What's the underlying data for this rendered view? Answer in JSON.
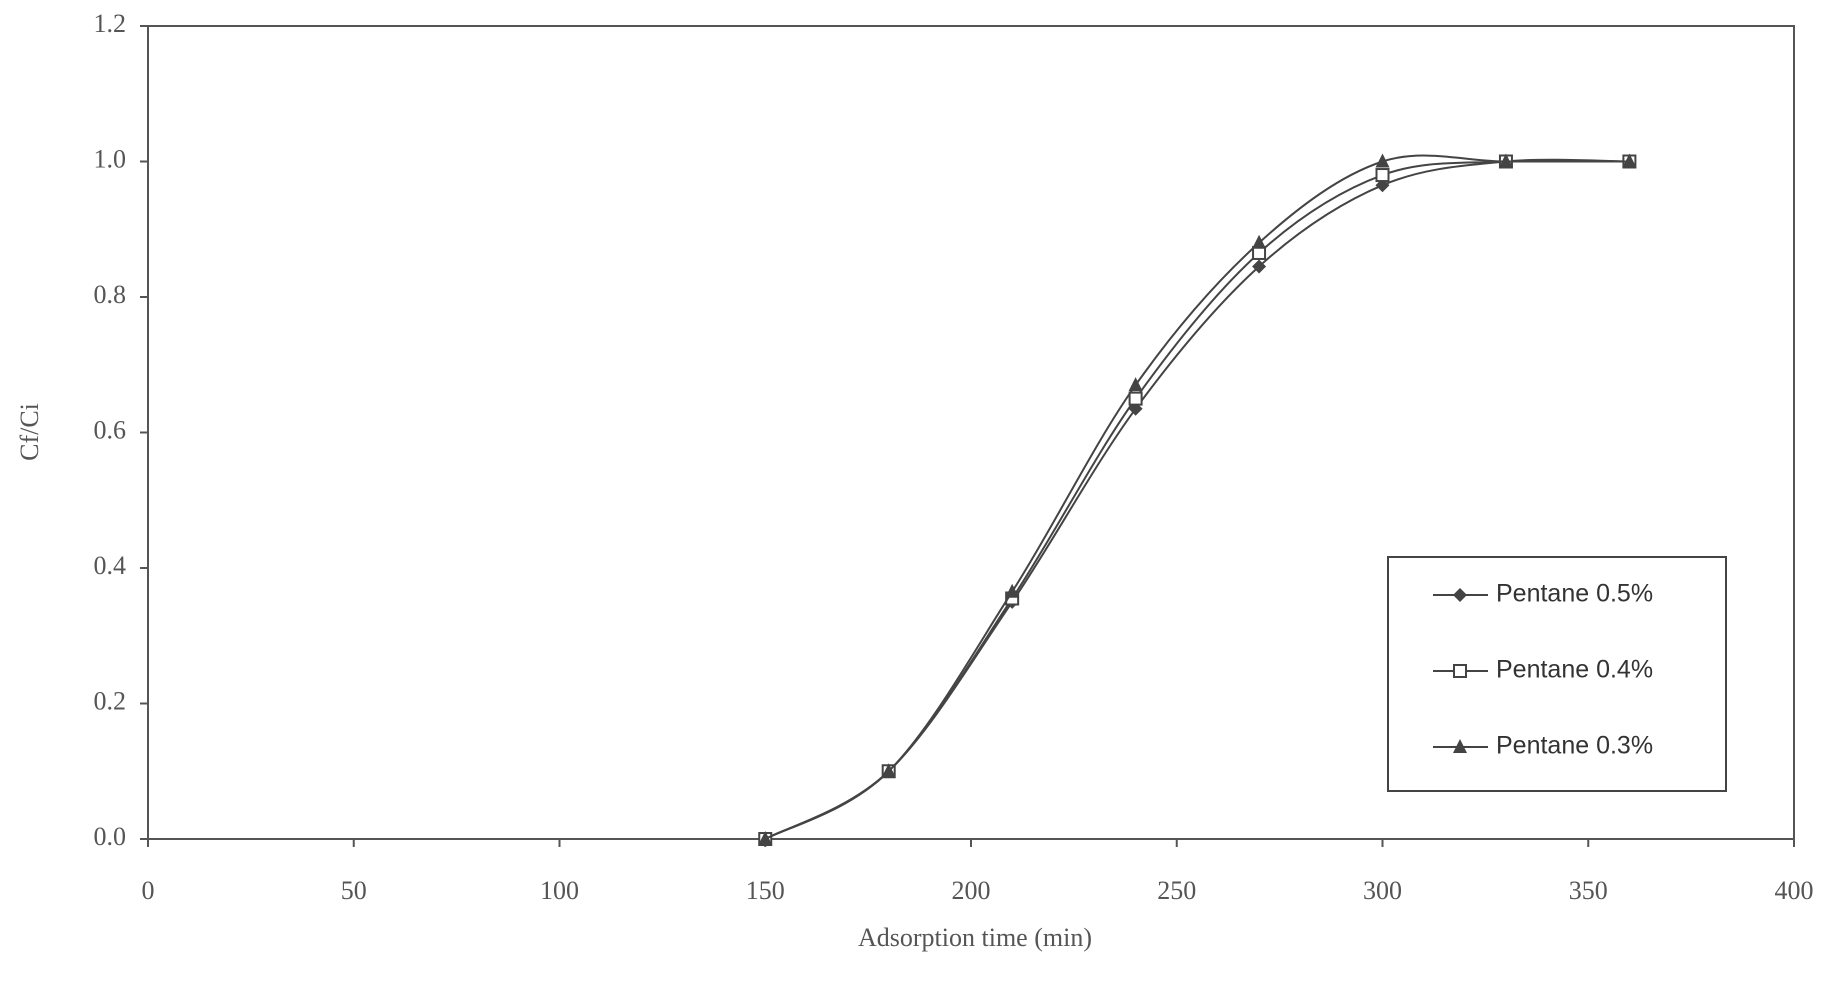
{
  "chart_data": {
    "type": "line",
    "x_label": "Adsorption time (min)",
    "y_label": "Cf/Ci",
    "x": [
      150,
      180,
      210,
      240,
      270,
      300,
      330,
      360
    ],
    "series": [
      {
        "name": "Pentane 0.5%",
        "color": "#444444",
        "marker": "diamond",
        "values": [
          0,
          0.1,
          0.35,
          0.635,
          0.845,
          0.965,
          1.0,
          1.0
        ]
      },
      {
        "name": "Pentane 0.4%",
        "color": "#444444",
        "marker": "square",
        "values": [
          0,
          0.1,
          0.355,
          0.65,
          0.865,
          0.98,
          1.0,
          1.0
        ]
      },
      {
        "name": "Pentane 0.3%",
        "color": "#444444",
        "marker": "triangle",
        "values": [
          0,
          0.1,
          0.365,
          0.67,
          0.88,
          1.0,
          1.0,
          1.0
        ]
      }
    ],
    "xlim": [
      0,
      400
    ],
    "xticks": [
      0,
      50,
      100,
      150,
      200,
      250,
      300,
      350,
      400
    ],
    "ylim": [
      0,
      1.2
    ],
    "yticks": [
      {
        "value": 0,
        "label": "0.0"
      },
      0.2,
      0.4,
      0.6,
      0.8,
      {
        "value": 1,
        "label": "1.0"
      },
      1.2
    ],
    "legend": "lower-right",
    "grid": false
  }
}
